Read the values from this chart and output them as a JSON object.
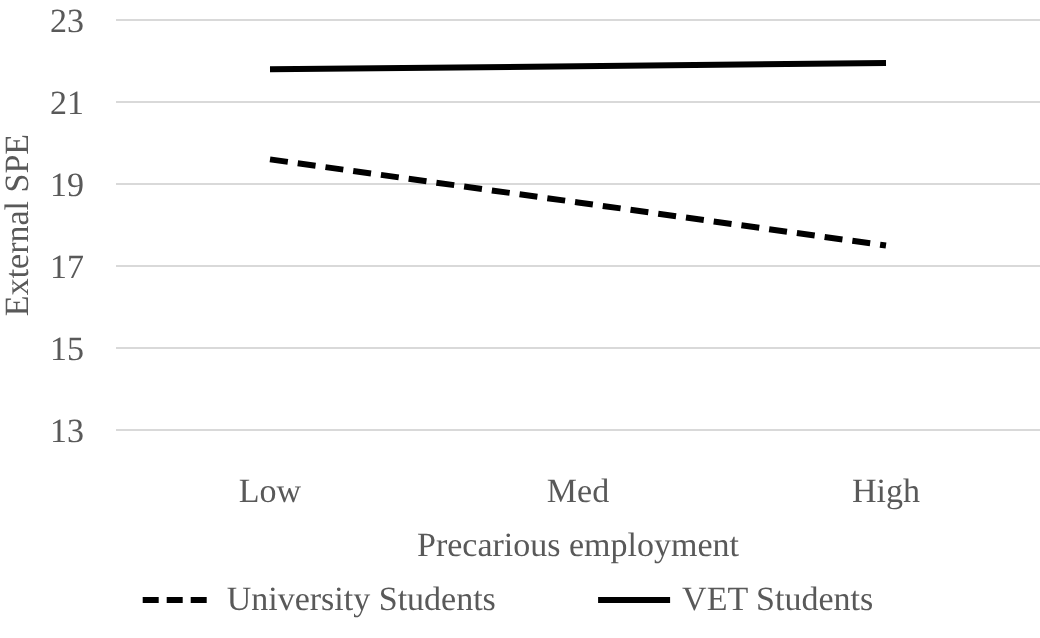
{
  "chart_data": {
    "type": "line",
    "xlabel": "Precarious employment",
    "ylabel": "External SPE",
    "categories": [
      "Low",
      "Med",
      "High"
    ],
    "series": [
      {
        "name": "University Students",
        "color": "#000000",
        "values": [
          19.6,
          18.55,
          17.5
        ],
        "line_style": "dashed"
      },
      {
        "name": "VET Students",
        "color": "#000000",
        "values": [
          21.8,
          21.87,
          21.95
        ],
        "line_style": "solid"
      }
    ],
    "ylim": [
      13,
      23
    ],
    "yticks": [
      13,
      15,
      17,
      19,
      21,
      23
    ],
    "grid": "y",
    "legend": "bottom",
    "marker": "none"
  }
}
